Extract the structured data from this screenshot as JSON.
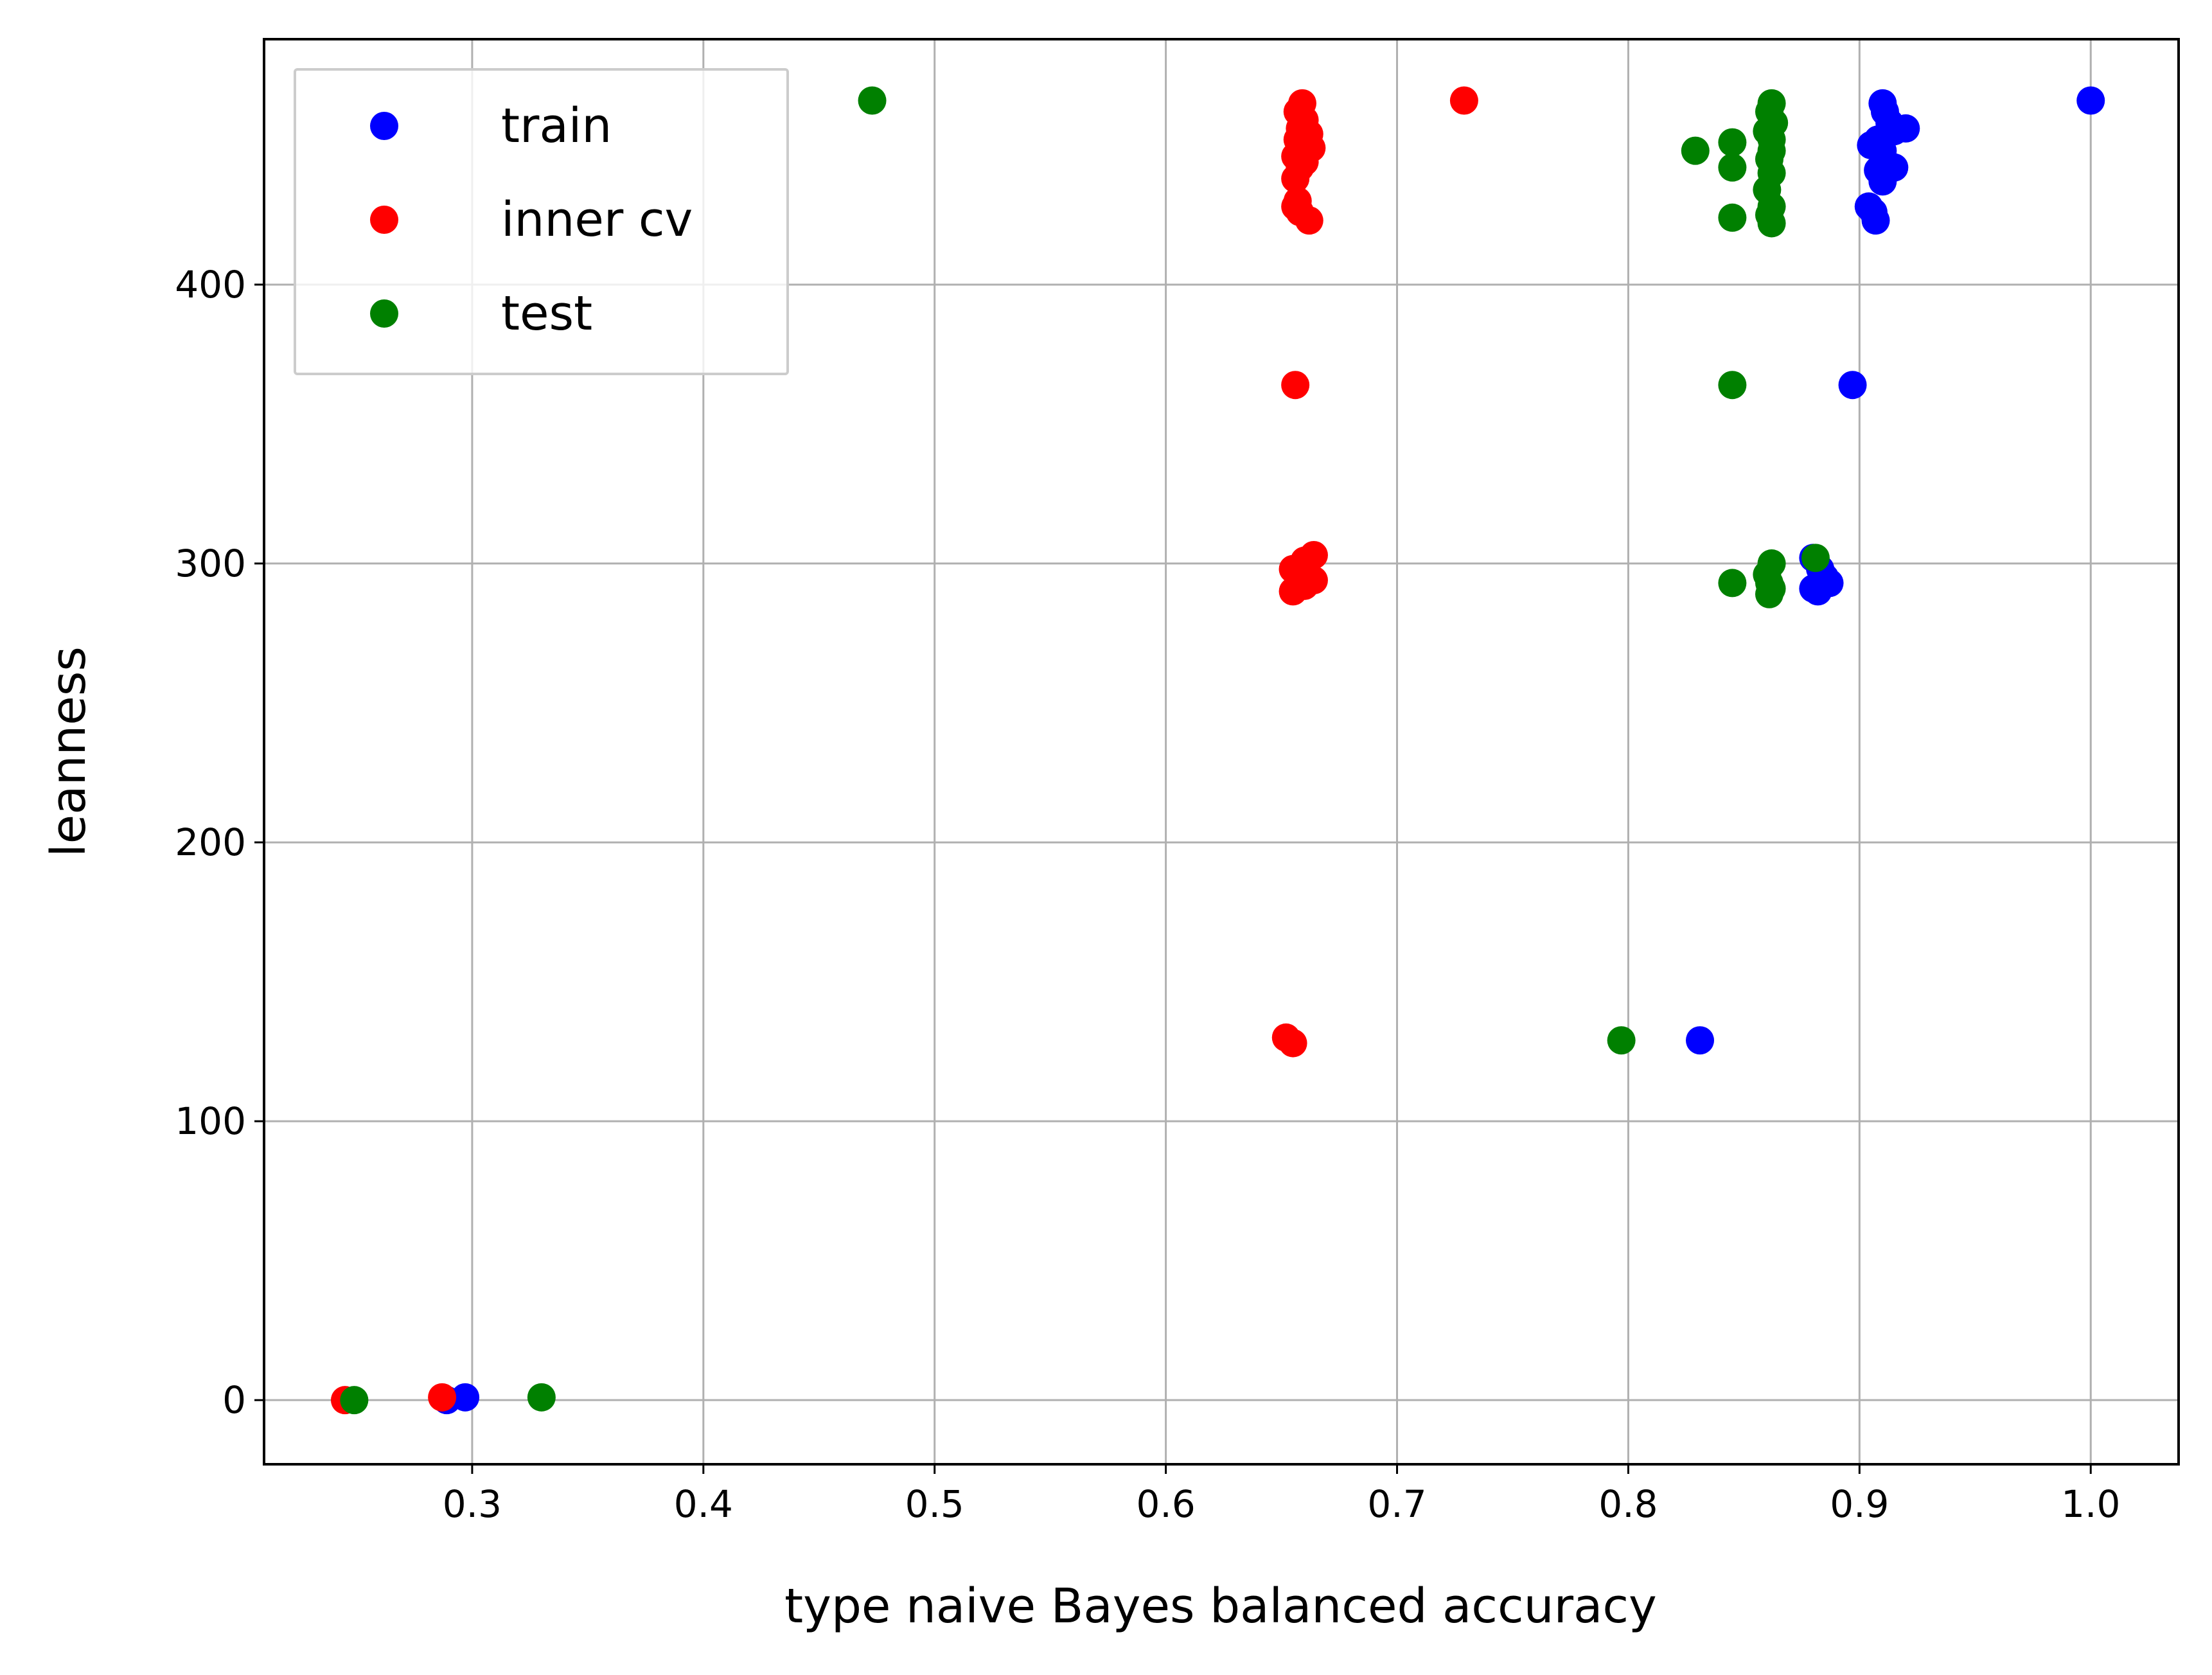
{
  "chart_data": {
    "type": "scatter",
    "title": "",
    "xlabel": "type naive Bayes balanced accuracy",
    "ylabel": "leanness",
    "xlim": [
      0.21,
      1.038
    ],
    "ylim": [
      -23,
      488
    ],
    "xticks": [
      0.3,
      0.4,
      0.5,
      0.6,
      0.7,
      0.8,
      0.9,
      1.0
    ],
    "xtick_labels": [
      "0.3",
      "0.4",
      "0.5",
      "0.6",
      "0.7",
      "0.8",
      "0.9",
      "1.0"
    ],
    "yticks": [
      0,
      100,
      200,
      300,
      400
    ],
    "ytick_labels": [
      "0",
      "100",
      "200",
      "300",
      "400"
    ],
    "grid": true,
    "legend_position": "top-left",
    "series": [
      {
        "name": "train",
        "color": "#0000ff",
        "points": [
          [
            1.0,
            466
          ],
          [
            0.91,
            465
          ],
          [
            0.911,
            462
          ],
          [
            0.913,
            458
          ],
          [
            0.92,
            456
          ],
          [
            0.915,
            455
          ],
          [
            0.908,
            452
          ],
          [
            0.905,
            450
          ],
          [
            0.91,
            448
          ],
          [
            0.915,
            442
          ],
          [
            0.908,
            441
          ],
          [
            0.91,
            437
          ],
          [
            0.904,
            428
          ],
          [
            0.906,
            426
          ],
          [
            0.907,
            423
          ],
          [
            0.897,
            364
          ],
          [
            0.88,
            302
          ],
          [
            0.883,
            298
          ],
          [
            0.885,
            295
          ],
          [
            0.887,
            293
          ],
          [
            0.88,
            291
          ],
          [
            0.882,
            290
          ],
          [
            0.831,
            129
          ],
          [
            0.297,
            1
          ],
          [
            0.289,
            0
          ]
        ]
      },
      {
        "name": "inner cv",
        "color": "#ff0000",
        "points": [
          [
            0.729,
            466
          ],
          [
            0.659,
            465
          ],
          [
            0.657,
            462
          ],
          [
            0.66,
            459
          ],
          [
            0.658,
            456
          ],
          [
            0.662,
            454
          ],
          [
            0.657,
            452
          ],
          [
            0.66,
            450
          ],
          [
            0.663,
            449
          ],
          [
            0.656,
            446
          ],
          [
            0.66,
            444
          ],
          [
            0.658,
            442
          ],
          [
            0.656,
            438
          ],
          [
            0.657,
            430
          ],
          [
            0.656,
            428
          ],
          [
            0.658,
            426
          ],
          [
            0.662,
            423
          ],
          [
            0.656,
            364
          ],
          [
            0.664,
            303
          ],
          [
            0.66,
            301
          ],
          [
            0.655,
            298
          ],
          [
            0.658,
            296
          ],
          [
            0.662,
            295
          ],
          [
            0.664,
            294
          ],
          [
            0.66,
            292
          ],
          [
            0.655,
            290
          ],
          [
            0.652,
            130
          ],
          [
            0.655,
            128
          ],
          [
            0.287,
            1
          ],
          [
            0.245,
            0
          ]
        ]
      },
      {
        "name": "test",
        "color": "#008000",
        "points": [
          [
            0.473,
            466
          ],
          [
            0.862,
            465
          ],
          [
            0.861,
            462
          ],
          [
            0.863,
            458
          ],
          [
            0.86,
            455
          ],
          [
            0.862,
            452
          ],
          [
            0.845,
            451
          ],
          [
            0.829,
            448
          ],
          [
            0.862,
            448
          ],
          [
            0.861,
            445
          ],
          [
            0.845,
            442
          ],
          [
            0.862,
            440
          ],
          [
            0.86,
            434
          ],
          [
            0.862,
            428
          ],
          [
            0.861,
            425
          ],
          [
            0.845,
            424
          ],
          [
            0.862,
            422
          ],
          [
            0.845,
            364
          ],
          [
            0.881,
            302
          ],
          [
            0.862,
            300
          ],
          [
            0.86,
            296
          ],
          [
            0.861,
            293
          ],
          [
            0.845,
            293
          ],
          [
            0.862,
            291
          ],
          [
            0.861,
            289
          ],
          [
            0.797,
            129
          ],
          [
            0.33,
            1
          ],
          [
            0.249,
            0
          ]
        ]
      }
    ]
  }
}
